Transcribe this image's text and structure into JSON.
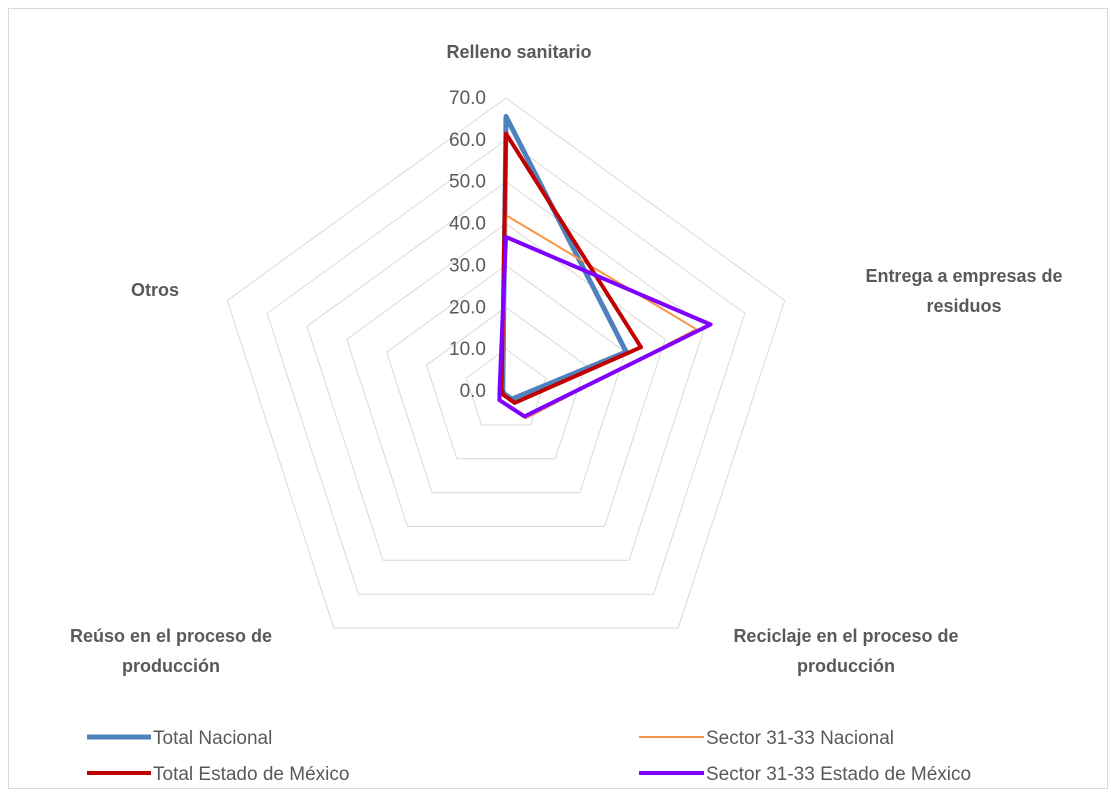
{
  "chart_data": {
    "type": "radar",
    "categories": [
      [
        "Relleno sanitario"
      ],
      [
        "Entrega a empresas de",
        "residuos"
      ],
      [
        "Reciclaje en el proceso de",
        "producción"
      ],
      [
        "Reúso en el proceso de",
        "producción"
      ],
      [
        "Otros"
      ]
    ],
    "ticks": [
      "0.0",
      "10.0",
      "20.0",
      "30.0",
      "40.0",
      "50.0",
      "60.0",
      "70.0"
    ],
    "rlim": [
      0,
      70
    ],
    "grid": true,
    "legend_position": "bottom",
    "series": [
      {
        "name": "Total Nacional",
        "color": "#4f81bd",
        "width": 5,
        "values": [
          65.6,
          30.2,
          2.4,
          0.8,
          0.8
        ]
      },
      {
        "name": "Sector 31-33 Nacional",
        "color": "#f79646",
        "width": 2,
        "values": [
          42.0,
          47.8,
          8.1,
          2.5,
          0.8
        ]
      },
      {
        "name": "Total Estado de México",
        "color": "#c00000",
        "width": 4,
        "values": [
          61.5,
          33.9,
          3.5,
          1.1,
          1.1
        ]
      },
      {
        "name": "Sector 31-33 Estado de México",
        "color": "#7f00ff",
        "width": 4,
        "values": [
          36.8,
          51.4,
          7.5,
          2.7,
          1.6
        ]
      }
    ]
  }
}
